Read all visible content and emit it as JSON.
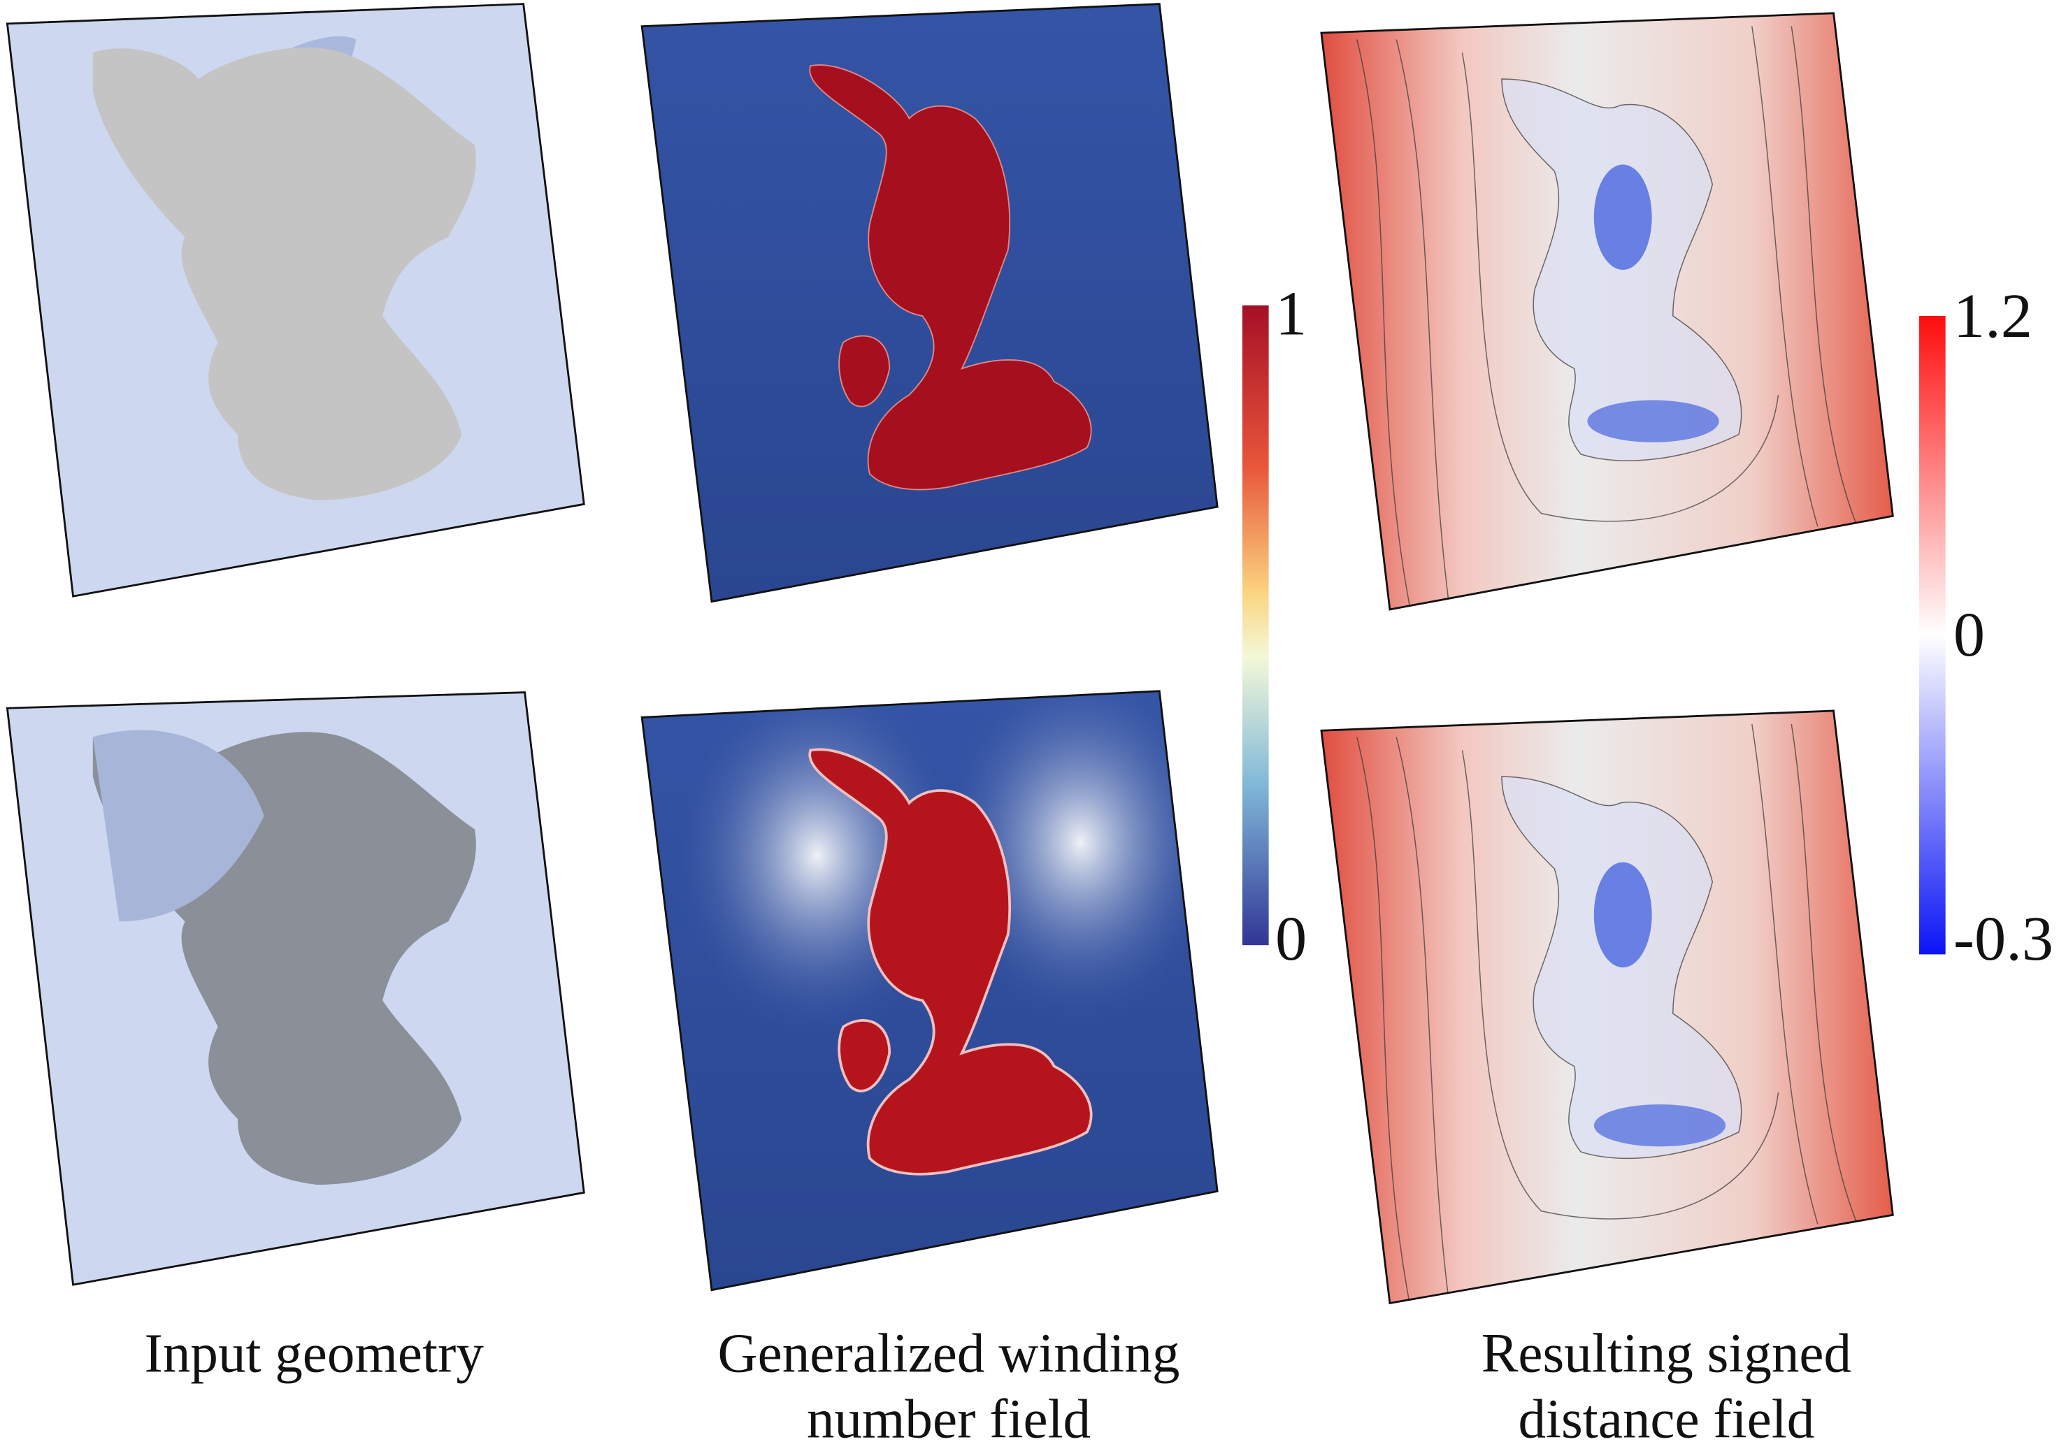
{
  "captions": {
    "input": [
      "Input geometry"
    ],
    "winding": [
      "Generalized winding",
      "number field"
    ],
    "sdf": [
      "Resulting signed",
      "distance field"
    ]
  },
  "colorbars": [
    {
      "ticks": [
        1,
        0
      ]
    },
    {
      "ticks": [
        1.2,
        0,
        -0.3
      ]
    }
  ]
}
